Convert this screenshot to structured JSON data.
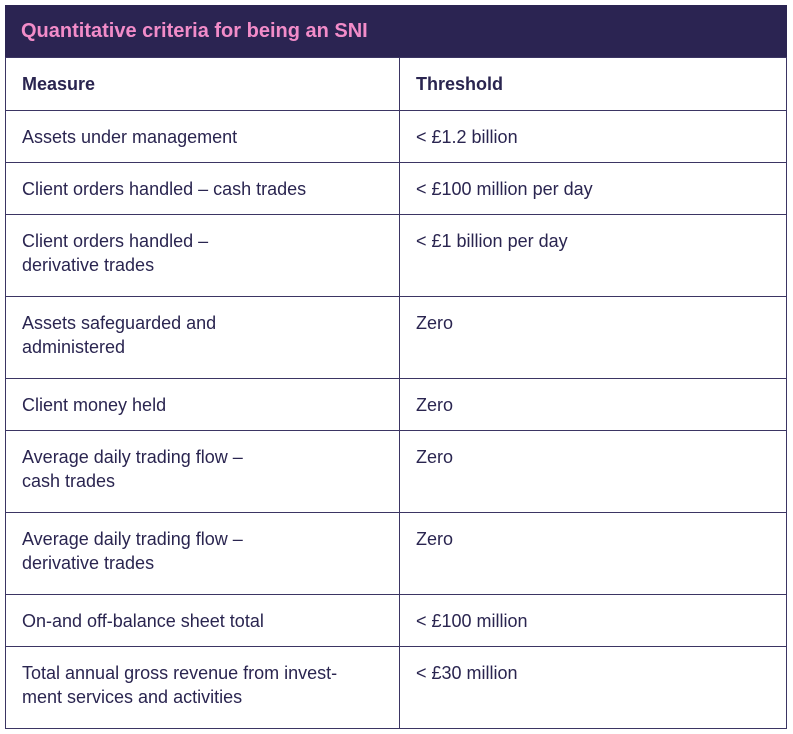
{
  "header": {
    "title": "Quantitative criteria for being an SNI"
  },
  "table": {
    "columns": [
      "Measure",
      "Threshold"
    ],
    "rows": [
      [
        "Assets under management",
        "< £1.2 billion"
      ],
      [
        "Client orders handled – cash trades",
        "< £100 million per day"
      ],
      [
        "Client orders handled –\nderivative trades",
        "< £1 billion per day"
      ],
      [
        "Assets safeguarded and\nadministered",
        "Zero"
      ],
      [
        "Client money held",
        "Zero"
      ],
      [
        "Average daily trading flow –\ncash trades",
        "Zero"
      ],
      [
        "Average daily trading flow –\nderivative trades",
        "Zero"
      ],
      [
        "On-and off-balance sheet total",
        "< £100 million"
      ],
      [
        "Total annual gross revenue from invest-\nment services and activities",
        "< £30 million"
      ]
    ]
  }
}
